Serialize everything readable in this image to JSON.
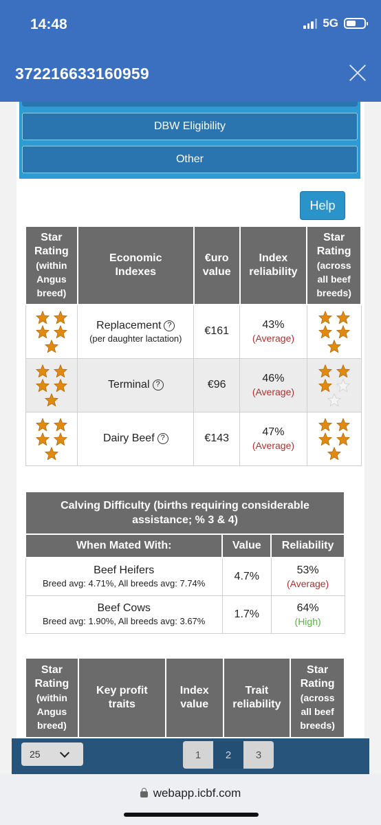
{
  "status_bar": {
    "time": "14:48",
    "network": "5G"
  },
  "header": {
    "title": "372216633160959",
    "close_icon": "close-icon"
  },
  "menu": {
    "buttons": [
      "DBW Eligibility",
      "Other"
    ]
  },
  "help_label": "Help",
  "index_table": {
    "headers": {
      "star_within": [
        "Star",
        "Rating",
        "(within",
        "Angus",
        "breed)"
      ],
      "economic": [
        "Economic",
        "Indexes"
      ],
      "euro": [
        "€uro",
        "value"
      ],
      "reliability": [
        "Index",
        "reliability"
      ],
      "star_across": [
        "Star",
        "Rating",
        "(across",
        "all beef",
        "breeds)"
      ]
    },
    "rows": [
      {
        "name": "Replacement",
        "sub": "(per daughter lactation)",
        "value": "€161",
        "reliability": "43%",
        "reliability_label": "(Average)",
        "stars_within": 5,
        "stars_across": 5
      },
      {
        "name": "Terminal",
        "sub": "",
        "value": "€96",
        "reliability": "46%",
        "reliability_label": "(Average)",
        "stars_within": 5,
        "stars_across": 3
      },
      {
        "name": "Dairy Beef",
        "sub": "",
        "value": "€143",
        "reliability": "47%",
        "reliability_label": "(Average)",
        "stars_within": 5,
        "stars_across": 5
      }
    ]
  },
  "calving_table": {
    "caption": "Calving Difficulty (births requiring considerable assistance; % 3 & 4)",
    "headers": [
      "When Mated With:",
      "Value",
      "Reliability"
    ],
    "rows": [
      {
        "name": "Beef Heifers",
        "sub": "Breed avg: 4.71%, All breeds avg: 7.74%",
        "value": "4.7%",
        "reliability": "53%",
        "reliability_label": "(Average)"
      },
      {
        "name": "Beef Cows",
        "sub": "Breed avg: 1.90%, All breeds avg: 3.67%",
        "value": "1.7%",
        "reliability": "64%",
        "reliability_label": "(High)"
      }
    ]
  },
  "trait_table": {
    "headers": {
      "star_within": [
        "Star",
        "Rating",
        "(within",
        "Angus",
        "breed)"
      ],
      "key_traits": [
        "Key profit",
        "traits"
      ],
      "index_value": [
        "Index",
        "value"
      ],
      "trait_reliability": [
        "Trait",
        "reliability"
      ],
      "star_across": [
        "Star",
        "Rating",
        "(across",
        "all beef",
        "breeds)"
      ]
    }
  },
  "pagination": {
    "page_size": "25",
    "pages": [
      "1",
      "2",
      "3"
    ],
    "active_page": "2"
  },
  "browser": {
    "url": "webapp.icbf.com"
  },
  "colors": {
    "header_blue": "#3b6fbf",
    "star_orange": "#e08a12",
    "table_header_gray": "#6b6b6b"
  }
}
